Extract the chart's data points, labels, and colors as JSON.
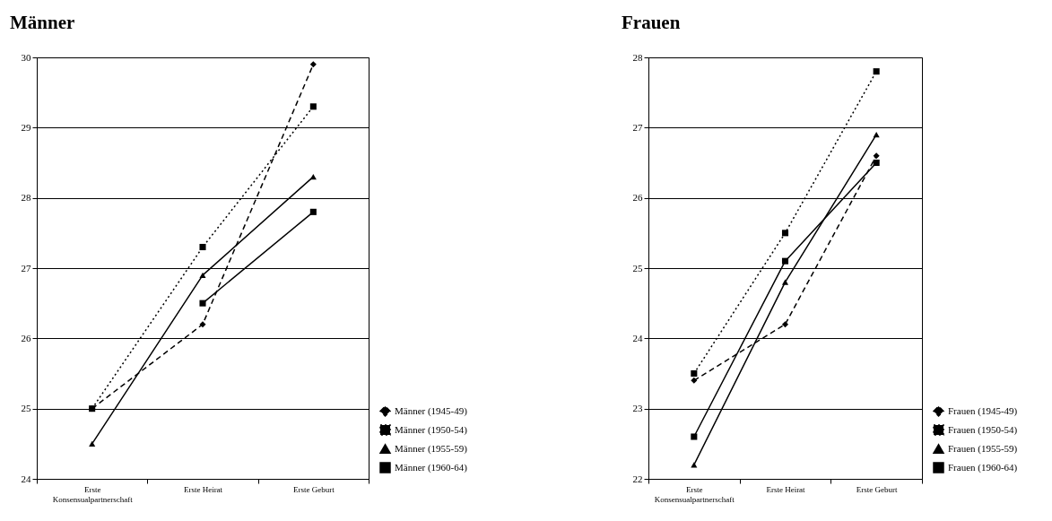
{
  "chart_data": [
    {
      "type": "line",
      "title": "Männer",
      "categories": [
        "Erste Konsensualpartnerschaft",
        "Erste Heirat",
        "Erste Geburt"
      ],
      "series": [
        {
          "name": "Männer (1945-49)",
          "color": "#000000",
          "marker": "diamond",
          "line_style": "dashed",
          "values": [
            25.0,
            26.2,
            29.9
          ]
        },
        {
          "name": "Männer (1950-54)",
          "color": "#000000",
          "marker": "square",
          "line_style": "dotted",
          "values": [
            25.0,
            27.3,
            29.3
          ]
        },
        {
          "name": "Männer (1955-59)",
          "color": "#000000",
          "marker": "triangle",
          "line_style": "solid",
          "values": [
            24.5,
            26.9,
            28.3
          ]
        },
        {
          "name": "Männer (1960-64)",
          "color": "#000000",
          "marker": "square",
          "line_style": "solid",
          "values": [
            null,
            26.5,
            27.8
          ]
        }
      ],
      "ylim": [
        24,
        30
      ],
      "yticks": [
        24,
        25,
        26,
        27,
        28,
        29,
        30
      ],
      "grid": "y",
      "legend": "bottom right"
    },
    {
      "type": "line",
      "title": "Frauen",
      "categories": [
        "Erste Konsensualpartnerschaft",
        "Erste Heirat",
        "Erste Geburt"
      ],
      "series": [
        {
          "name": "Frauen (1945-49)",
          "color": "#000000",
          "marker": "diamond",
          "line_style": "dashed",
          "values": [
            23.4,
            24.2,
            26.6
          ]
        },
        {
          "name": "Frauen (1950-54)",
          "color": "#000000",
          "marker": "square",
          "line_style": "dotted",
          "values": [
            23.5,
            25.5,
            27.8
          ]
        },
        {
          "name": "Frauen (1955-59)",
          "color": "#000000",
          "marker": "triangle",
          "line_style": "solid",
          "values": [
            22.2,
            24.8,
            26.9
          ]
        },
        {
          "name": "Frauen (1960-64)",
          "color": "#000000",
          "marker": "square",
          "line_style": "solid",
          "values": [
            22.6,
            25.1,
            26.5
          ]
        }
      ],
      "ylim": [
        22,
        28
      ],
      "yticks": [
        22,
        23,
        24,
        25,
        26,
        27,
        28
      ],
      "grid": "y",
      "legend": "bottom right"
    }
  ]
}
